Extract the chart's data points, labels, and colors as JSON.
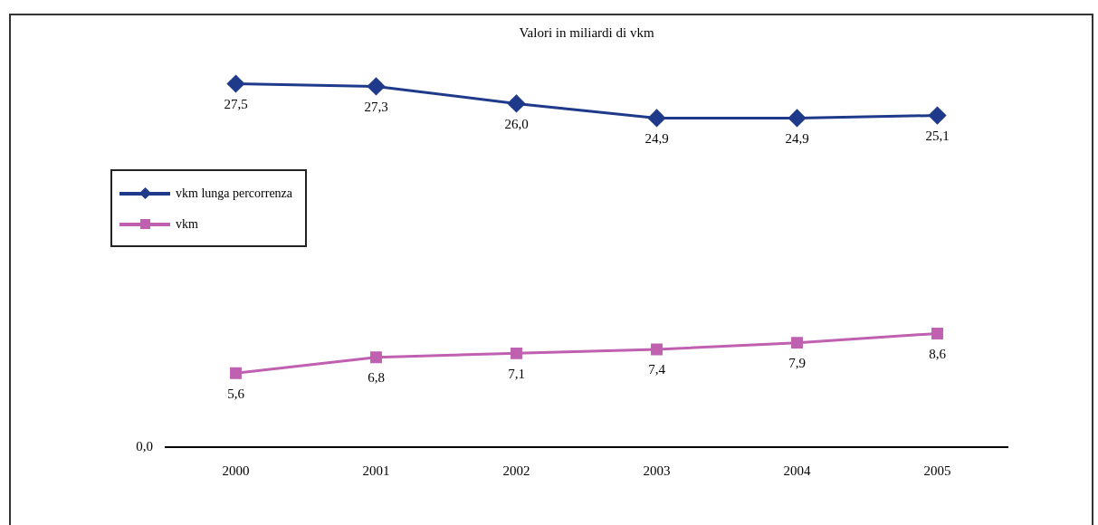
{
  "chart_data": {
    "type": "line",
    "title": "Valori in miliardi di vkm",
    "categories": [
      "2000",
      "2001",
      "2002",
      "2003",
      "2004",
      "2005"
    ],
    "series": [
      {
        "name": "vkm lunga percorrenza",
        "color": "#1f3a8a",
        "marker": "diamond",
        "values": [
          27.5,
          27.3,
          26.0,
          24.9,
          24.9,
          25.1
        ],
        "value_labels": [
          "27,5",
          "27,3",
          "26,0",
          "24,9",
          "24,9",
          "25,1"
        ]
      },
      {
        "name": "vkm",
        "color": "#c060b0",
        "marker": "square",
        "values": [
          5.6,
          6.8,
          7.1,
          7.4,
          7.9,
          8.6
        ],
        "value_labels": [
          "5,6",
          "6,8",
          "7,1",
          "7,4",
          "7,9",
          "8,6"
        ]
      }
    ],
    "annotations": [
      "0,0"
    ],
    "grid": false,
    "legend": "left",
    "line_style": "solid"
  }
}
